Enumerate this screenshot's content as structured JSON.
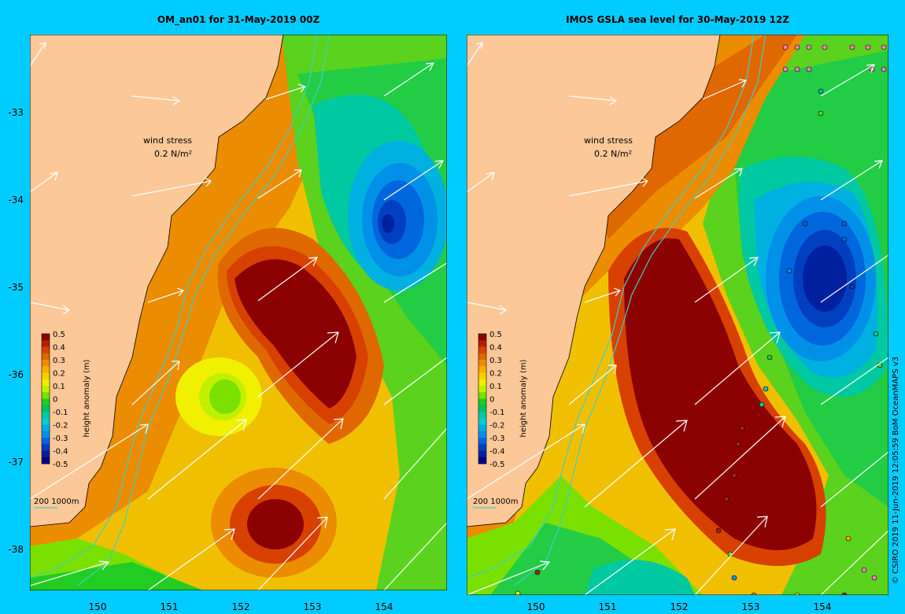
{
  "panels": [
    {
      "title": "OM_an01 for 31-May-2019 00Z"
    },
    {
      "title": "IMOS GSLA sea level  for 30-May-2019 12Z"
    }
  ],
  "y_axis_labels": [
    "-33",
    "-34",
    "-35",
    "-36",
    "-37",
    "-38"
  ],
  "x_axis_labels": [
    "150",
    "151",
    "152",
    "153",
    "154"
  ],
  "wind_stress": {
    "label": "wind stress",
    "unit": "0.2 N/m²"
  },
  "colorbar": {
    "label": "height anomaly (m)",
    "ticks": [
      "0.5",
      "0.4",
      "0.3",
      "0.2",
      "0.1",
      "0",
      "-0.1",
      "-0.2",
      "-0.3",
      "-0.4",
      "-0.5"
    ],
    "colors": [
      "#8b0000",
      "#b02000",
      "#d84000",
      "#e06800",
      "#ec8c00",
      "#f5b000",
      "#f8d000",
      "#f0f000",
      "#c0f000",
      "#7ae000",
      "#22cc22",
      "#00c060",
      "#00c8a0",
      "#00d0d0",
      "#00b0e0",
      "#0090e8",
      "#0066dd",
      "#0040c0",
      "#0020a0",
      "#000088"
    ]
  },
  "scale_label": "200  1000m",
  "credit": "© CSIRO 2019   11-Jun-2019 12:05:59 BoM OceanMAPS v3",
  "colors": {
    "background": "#00ccff",
    "land": "#fdc898",
    "isobath": "#40d0c0",
    "frame": "#000000"
  }
}
